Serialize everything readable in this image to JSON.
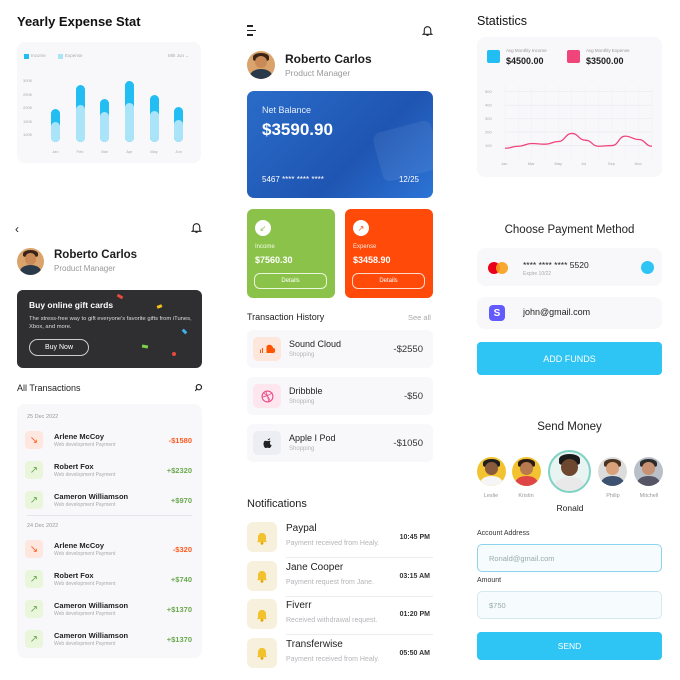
{
  "yearly": {
    "title": "Yearly Expense Stat",
    "legend": [
      "Income",
      "Expense"
    ],
    "filter": "Mth Jun",
    "yticks": [
      "300K",
      "250K",
      "200K",
      "150K",
      "100K"
    ],
    "colors": {
      "income": "#22bdf3",
      "expense": "#a9e4f9"
    }
  },
  "chart_data": [
    {
      "type": "bar",
      "title": "Yearly Expense Stat",
      "categories": [
        "Jan",
        "Feb",
        "Mar",
        "Apr",
        "May",
        "Jun"
      ],
      "series": [
        {
          "name": "Income",
          "values": [
            170,
            290,
            220,
            310,
            240,
            180
          ]
        },
        {
          "name": "Expense",
          "values": [
            100,
            190,
            150,
            200,
            160,
            110
          ]
        }
      ],
      "ylim": [
        0,
        330
      ],
      "legend": "top-left"
    },
    {
      "type": "line",
      "title": "Statistics",
      "x": [
        "Jan",
        "Feb",
        "Mar",
        "Apr",
        "May",
        "Jun",
        "Jul",
        "Aug",
        "Sep",
        "Oct",
        "Nov",
        "Dec"
      ],
      "series": [
        {
          "name": "Avg Monthly Expense",
          "values": [
            80,
            95,
            115,
            110,
            130,
            190,
            140,
            95,
            100,
            170,
            145,
            95
          ]
        }
      ],
      "yticks": [
        500,
        400,
        300,
        200,
        100
      ],
      "ylim": [
        0,
        550
      ],
      "grid": true
    }
  ],
  "left": {
    "back_icon": "chevron-left-icon",
    "user_name": "Roberto Carlos",
    "user_role": "Product Manager",
    "promo": {
      "title": "Buy online gift cards",
      "text": "The stress-free way to gift everyone's favorite gifts from iTunes, Xbox, and more.",
      "button": "Buy Now"
    },
    "all_tx": "All Transactions",
    "groups": [
      {
        "date": "25 Dec 2022",
        "items": [
          {
            "name": "Arlene McCoy",
            "sub": "Web development Payment",
            "amount": "-$1580",
            "dir": "down"
          },
          {
            "name": "Robert Fox",
            "sub": "Web development Payment",
            "amount": "+$2320",
            "dir": "up"
          },
          {
            "name": "Cameron Williamson",
            "sub": "Web development Payment",
            "amount": "+$970",
            "dir": "up"
          }
        ]
      },
      {
        "date": "24 Dec 2022",
        "items": [
          {
            "name": "Arlene McCoy",
            "sub": "Web development Payment",
            "amount": "-$320",
            "dir": "down"
          },
          {
            "name": "Robert Fox",
            "sub": "Web development Payment",
            "amount": "+$740",
            "dir": "up"
          },
          {
            "name": "Cameron Williamson",
            "sub": "Web development Payment",
            "amount": "+$1370",
            "dir": "up"
          },
          {
            "name": "Cameron Williamson",
            "sub": "Web development Payment",
            "amount": "+$1370",
            "dir": "up"
          }
        ]
      }
    ]
  },
  "middle": {
    "user_name": "Roberto Carlos",
    "user_role": "Product Manager",
    "balance_label": "Net Balance",
    "balance": "$3590.90",
    "card_number": "5467 **** **** ****",
    "card_expiry": "12/25",
    "income": {
      "label": "Income",
      "value": "$7560.30",
      "button": "Details",
      "color": "#8bc34a"
    },
    "expense": {
      "label": "Expense",
      "value": "$3458.90",
      "button": "Details",
      "color": "#ff4a0a"
    },
    "tx_title": "Transaction History",
    "see_all": "See all",
    "transactions": [
      {
        "name": "Sound Cloud",
        "sub": "Shopping",
        "amount": "-$2550"
      },
      {
        "name": "Dribbble",
        "sub": "Shopping",
        "amount": "-$50"
      },
      {
        "name": "Apple I Pod",
        "sub": "Shopping",
        "amount": "-$1050"
      }
    ],
    "notif_title": "Notifications",
    "notifications": [
      {
        "title": "Paypal",
        "sub": "Payment received from Healy.",
        "time": "10:45 PM"
      },
      {
        "title": "Jane Cooper",
        "sub": "Payment request from Jane.",
        "time": "03:15 AM"
      },
      {
        "title": "Fiverr",
        "sub": "Received withdrawal request.",
        "time": "01:20 PM"
      },
      {
        "title": "Transferwise",
        "sub": "Payment received from Healy.",
        "time": "05:50 AM"
      }
    ]
  },
  "right": {
    "stats_title": "Statistics",
    "stat_income": {
      "label": "Avg Monthly Income",
      "value": "$4500.00",
      "color": "#22bdf3"
    },
    "stat_expense": {
      "label": "Avg Monthly Expense",
      "value": "$3500.00",
      "color": "#f0457a"
    },
    "payment_title": "Choose Payment Method",
    "card_masked": "**** **** **** 5520",
    "card_expires": "Expire 10/22",
    "email": "john@gmail.com",
    "add_funds": "ADD FUNDS",
    "send_title": "Send Money",
    "people": [
      "Leslie",
      "Kristin",
      "Ronald",
      "Philip",
      "Mitchell"
    ],
    "account_label": "Account Address",
    "account_placeholder": "Ronald@gmail.com",
    "amount_label": "Amount",
    "amount_placeholder": "$750",
    "send_button": "SEND",
    "accent": "#2ec5f5"
  }
}
